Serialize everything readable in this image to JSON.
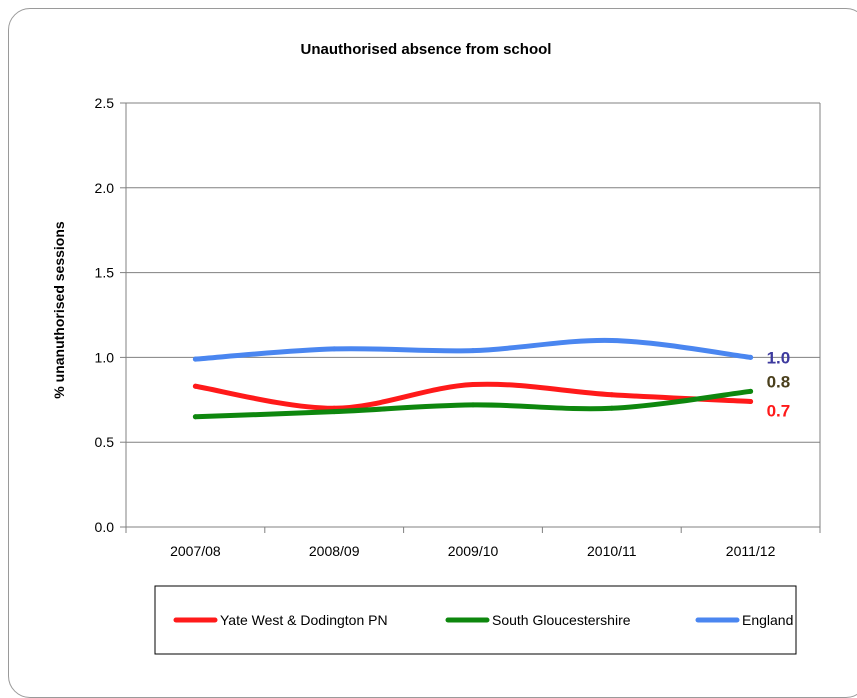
{
  "chart_data": {
    "type": "line",
    "title": "Unauthorised absence from school",
    "ylabel": "% unanuthorised sessions",
    "xlabel": "",
    "categories": [
      "2007/08",
      "2008/09",
      "2009/10",
      "2010/11",
      "2011/12"
    ],
    "ylim": [
      0,
      2.5
    ],
    "yticks": [
      "0.0",
      "0.5",
      "1.0",
      "1.5",
      "2.0",
      "2.5"
    ],
    "grid": true,
    "legend_position": "bottom",
    "series": [
      {
        "name": "Yate West & Dodington PN",
        "values": [
          0.83,
          0.7,
          0.84,
          0.78,
          0.74
        ],
        "color": "#ff1a1a",
        "end_label": "0.7",
        "end_label_color": "#ff1a1a"
      },
      {
        "name": "South Gloucestershire",
        "values": [
          0.65,
          0.68,
          0.72,
          0.7,
          0.8
        ],
        "color": "#0e870e",
        "end_label": "0.8",
        "end_label_color": "#4a3f1c"
      },
      {
        "name": "England",
        "values": [
          0.99,
          1.05,
          1.04,
          1.1,
          1.0
        ],
        "color": "#4a86f0",
        "end_label": "1.0",
        "end_label_color": "#3d3a9e"
      }
    ]
  }
}
